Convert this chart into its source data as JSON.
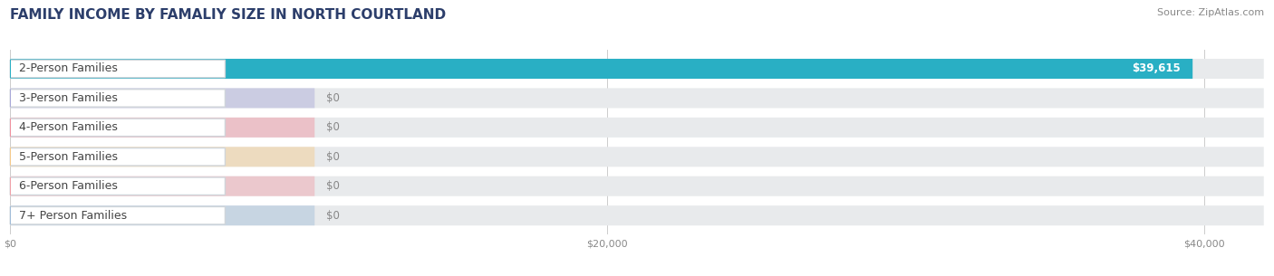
{
  "title": "FAMILY INCOME BY FAMALIY SIZE IN NORTH COURTLAND",
  "source": "Source: ZipAtlas.com",
  "categories": [
    "2-Person Families",
    "3-Person Families",
    "4-Person Families",
    "5-Person Families",
    "6-Person Families",
    "7+ Person Families"
  ],
  "values": [
    39615,
    0,
    0,
    0,
    0,
    0
  ],
  "bar_colors": [
    "#29afc4",
    "#a8a8d8",
    "#f0919e",
    "#f5c98a",
    "#f0a0a8",
    "#a0bcd8"
  ],
  "xlim": [
    0,
    42000
  ],
  "xticks": [
    0,
    20000,
    40000
  ],
  "xtick_labels": [
    "$0",
    "$20,000",
    "$40,000"
  ],
  "bg_color": "#ffffff",
  "bar_bg_color": "#e8eaec",
  "title_fontsize": 11,
  "source_fontsize": 8,
  "label_fontsize": 9,
  "value_fontsize": 8.5,
  "row_bg_color": "#f0f2f4"
}
